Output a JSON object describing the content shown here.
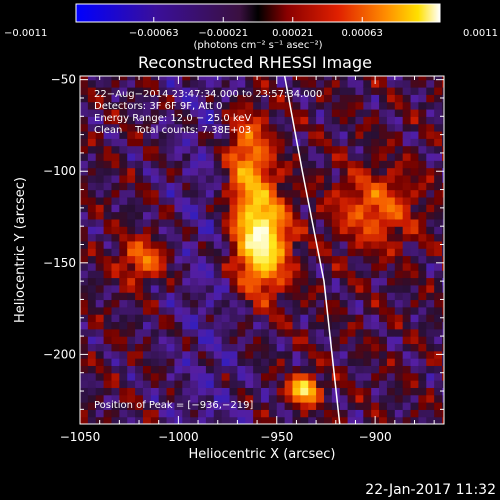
{
  "chart_data": {
    "type": "heatmap",
    "title": "Reconstructed RHESSI Image",
    "xlabel": "Heliocentric X (arcsec)",
    "ylabel": "Heliocentric Y (arcsec)",
    "xlim": [
      -1050,
      -865
    ],
    "ylim": [
      -238,
      -48
    ],
    "x_ticks": [
      -1050,
      -1000,
      -950,
      -900
    ],
    "x_tick_labels": [
      "−1050",
      "−1000",
      "−950",
      "−900"
    ],
    "y_ticks": [
      -50,
      -100,
      -150,
      -200
    ],
    "y_tick_labels": [
      "−50",
      "−100",
      "−150",
      "−200"
    ],
    "colorbar": {
      "min": -0.0011,
      "max": 0.0011,
      "colormap": "blue-purple-red-yellow-white",
      "ticks": [
        -0.0011,
        -0.00063,
        -0.00021,
        0.00021,
        0.00063,
        0.0011
      ],
      "tick_labels": [
        "−0.0011",
        "−0.00063",
        "−0.00021",
        "0.00021",
        "0.00063",
        "0.0011"
      ],
      "unit": "(photons cm⁻² s⁻¹ asec⁻²)"
    },
    "info_lines": [
      "22−Aug−2014 23:47:34.000 to 23:57:34.000",
      "Detectors: 3F 6F 9F, Att 0",
      "Energy Range: 12.0 − 25.0 keV",
      "Clean    Total counts: 7.38E+03"
    ],
    "peak_label": "Position of Peak = [−936,−219]",
    "peak": [
      -936,
      -219
    ],
    "sources": [
      {
        "x": -958,
        "y": -138,
        "sx": 9,
        "sy": 18,
        "amp": 1.0
      },
      {
        "x": -936,
        "y": -219,
        "sx": 5,
        "sy": 5,
        "amp": 0.9
      },
      {
        "x": -965,
        "y": -95,
        "sx": 8,
        "sy": 20,
        "amp": 0.55
      },
      {
        "x": -1018,
        "y": -148,
        "sx": 8,
        "sy": 8,
        "amp": 0.45
      },
      {
        "x": -900,
        "y": -120,
        "sx": 14,
        "sy": 14,
        "amp": 0.4
      }
    ],
    "limb_points": [
      [
        -946,
        -48
      ],
      [
        -937,
        -100
      ],
      [
        -926,
        -160
      ],
      [
        -918,
        -238
      ]
    ]
  },
  "footer": {
    "timestamp": "22-Jan-2017 11:32"
  }
}
